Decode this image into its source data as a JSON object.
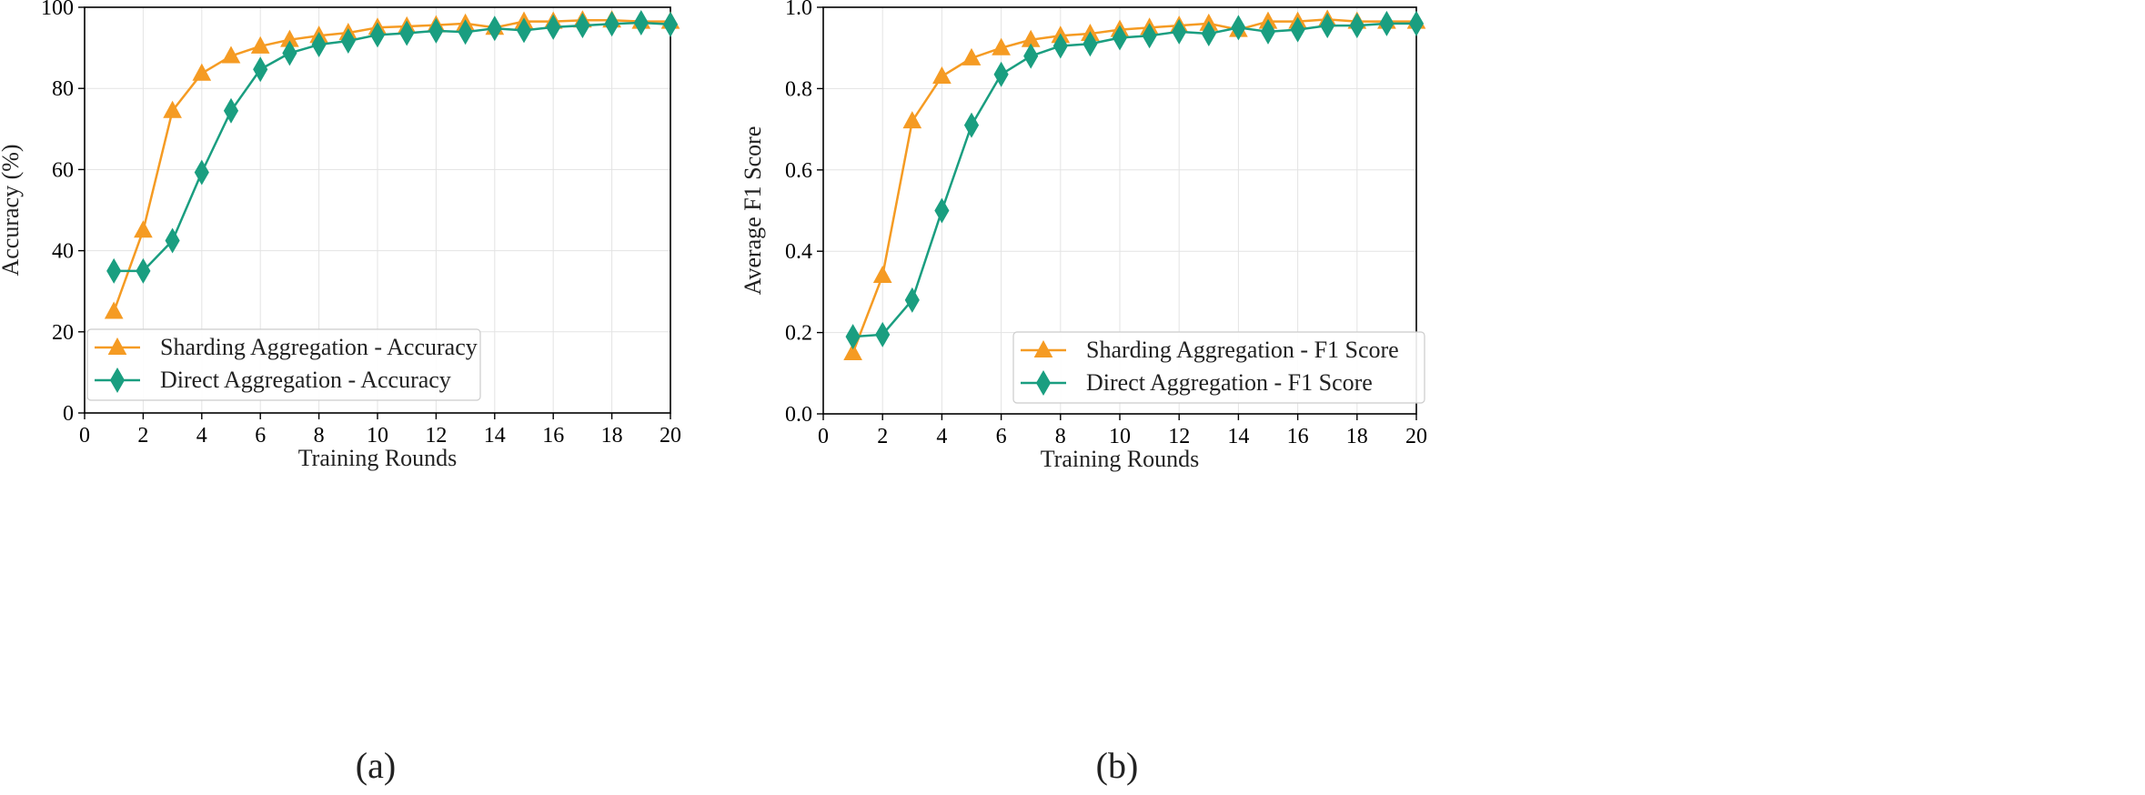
{
  "chart_data": [
    {
      "type": "line",
      "caption": "(a)",
      "xlabel": "Training Rounds",
      "ylabel": "Accuracy (%)",
      "xlim": [
        0,
        20
      ],
      "ylim": [
        0,
        100
      ],
      "xticks": [
        0,
        2,
        4,
        6,
        8,
        10,
        12,
        14,
        16,
        18,
        20
      ],
      "yticks": [
        0,
        20,
        40,
        60,
        80,
        100
      ],
      "ytick_labels": [
        "0",
        "20",
        "40",
        "60",
        "80",
        "100"
      ],
      "grid": true,
      "legend_position": "lower-right",
      "x": [
        1,
        2,
        3,
        4,
        5,
        6,
        7,
        8,
        9,
        10,
        11,
        12,
        13,
        14,
        15,
        16,
        17,
        18,
        19,
        20
      ],
      "series": [
        {
          "name": "Sharding Aggregation - Accuracy",
          "color": "#F59B23",
          "marker": "triangle",
          "values": [
            25,
            45,
            74.5,
            83.7,
            88,
            90.4,
            92,
            93,
            93.7,
            95,
            95.3,
            95.6,
            96,
            95,
            96.5,
            96.5,
            96.8,
            96.8,
            96.5,
            96.5
          ]
        },
        {
          "name": "Direct Aggregation - Accuracy",
          "color": "#1A9E80",
          "marker": "diamond",
          "values": [
            35,
            35,
            42.5,
            59.3,
            74.5,
            84.7,
            88.7,
            90.8,
            91.7,
            93.2,
            93.6,
            94.2,
            93.9,
            94.8,
            94.3,
            95.1,
            95.5,
            95.9,
            96.2,
            95.8
          ]
        }
      ]
    },
    {
      "type": "line",
      "caption": "(b)",
      "xlabel": "Training Rounds",
      "ylabel": "Average F1 Score",
      "xlim": [
        0,
        20
      ],
      "ylim": [
        0,
        1
      ],
      "xticks": [
        0,
        2,
        4,
        6,
        8,
        10,
        12,
        14,
        16,
        18,
        20
      ],
      "yticks": [
        0,
        0.2,
        0.4,
        0.6,
        0.8,
        1.0
      ],
      "ytick_labels": [
        "0.0",
        "0.2",
        "0.4",
        "0.6",
        "0.8",
        "1.0"
      ],
      "grid": true,
      "legend_position": "lower-right",
      "x": [
        1,
        2,
        3,
        4,
        5,
        6,
        7,
        8,
        9,
        10,
        11,
        12,
        13,
        14,
        15,
        16,
        17,
        18,
        19,
        20
      ],
      "series": [
        {
          "name": "Sharding Aggregation - F1 Score",
          "color": "#F59B23",
          "marker": "triangle",
          "values": [
            0.15,
            0.34,
            0.72,
            0.83,
            0.875,
            0.9,
            0.92,
            0.93,
            0.935,
            0.945,
            0.95,
            0.955,
            0.96,
            0.945,
            0.965,
            0.965,
            0.97,
            0.965,
            0.965,
            0.965
          ]
        },
        {
          "name": "Direct Aggregation - F1 Score",
          "color": "#1A9E80",
          "marker": "diamond",
          "values": [
            0.19,
            0.195,
            0.28,
            0.5,
            0.71,
            0.835,
            0.88,
            0.905,
            0.91,
            0.925,
            0.93,
            0.94,
            0.935,
            0.95,
            0.94,
            0.945,
            0.955,
            0.955,
            0.96,
            0.96
          ]
        }
      ]
    }
  ]
}
